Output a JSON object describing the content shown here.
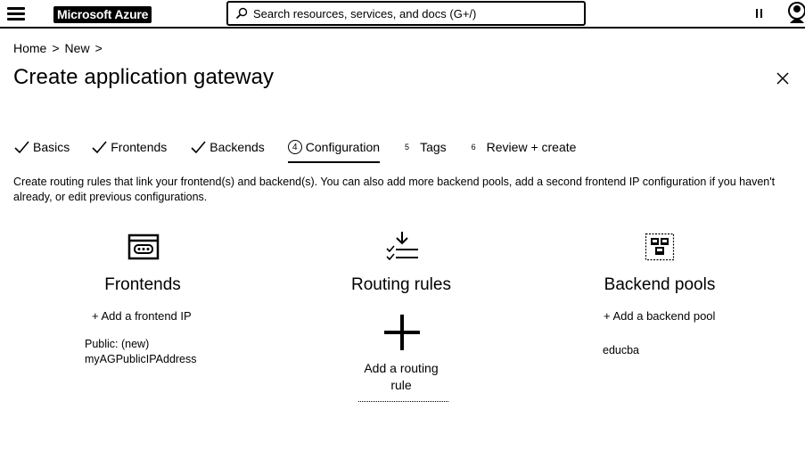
{
  "topbar": {
    "brand": "Microsoft Azure",
    "search_placeholder": "Search resources, services, and docs (G+/)"
  },
  "breadcrumb": {
    "items": [
      "Home",
      "New"
    ],
    "separator": ">"
  },
  "page": {
    "title": "Create application gateway"
  },
  "tabs": [
    {
      "label": "Basics",
      "state": "completed"
    },
    {
      "label": "Frontends",
      "state": "completed"
    },
    {
      "label": "Backends",
      "state": "completed"
    },
    {
      "label": "Configuration",
      "number": "4",
      "state": "active"
    },
    {
      "label": "Tags",
      "number": "5",
      "state": "pending"
    },
    {
      "label": "Review + create",
      "number": "6",
      "state": "pending"
    }
  ],
  "description": "Create routing rules that link your frontend(s) and backend(s). You can also add more backend pools, add a second frontend IP configuration if you haven't already, or edit previous configurations.",
  "frontends": {
    "title": "Frontends",
    "add_label": "+ Add a frontend IP",
    "entry_line1": "Public: (new)",
    "entry_line2": "myAGPublicIPAddress"
  },
  "routing": {
    "title": "Routing rules",
    "add_line1": "Add a routing",
    "add_line2": "rule"
  },
  "backends": {
    "title": "Backend pools",
    "add_label": "+ Add a backend pool",
    "entry": "educba"
  }
}
